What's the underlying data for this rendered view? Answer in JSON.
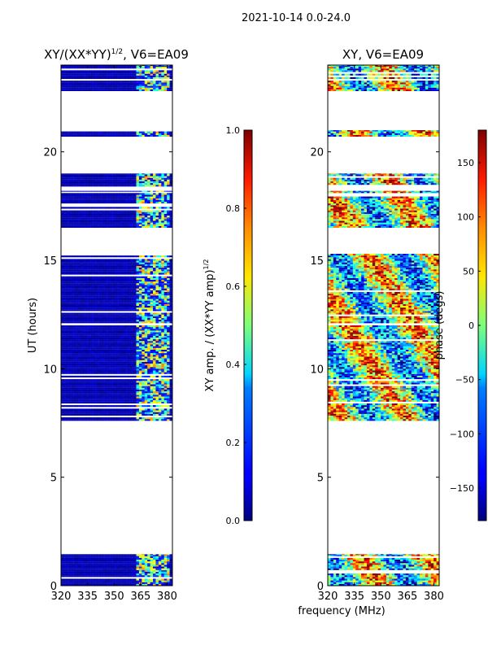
{
  "figure": {
    "suptitle": "2021-10-14 0.0-24.0"
  },
  "chart_data": [
    {
      "type": "heatmap",
      "id": "left",
      "title_main": "XY/(XX*YY)",
      "title_sup": "1/2",
      "title_tail": ", V6=EA09",
      "ylabel": "UT (hours)",
      "xlabel": "",
      "xlim": [
        320,
        383
      ],
      "ylim": [
        0,
        24
      ],
      "xticks": [
        "320",
        "335",
        "350",
        "365",
        "380"
      ],
      "xtick_values": [
        320,
        335,
        350,
        365,
        380
      ],
      "yticks": [
        "0",
        "5",
        "10",
        "15",
        "20"
      ],
      "ytick_values": [
        0,
        5,
        10,
        15,
        20
      ],
      "data_intervals_hours": [
        [
          0,
          1.45
        ],
        [
          7.6,
          12.0
        ],
        [
          12.1,
          15.3
        ],
        [
          16.5,
          18.2
        ],
        [
          18.4,
          19.0
        ],
        [
          20.7,
          21.0
        ],
        [
          22.8,
          24.0
        ]
      ],
      "bright_channel_band_mhz": [
        362,
        381
      ],
      "colorbar": {
        "label_main": "XY amp. / (XX*YY amp)",
        "label_sup": "1/2",
        "ticks": [
          "0.0",
          "0.2",
          "0.4",
          "0.6",
          "0.8",
          "1.0"
        ],
        "tick_values": [
          0,
          0.2,
          0.4,
          0.6,
          0.8,
          1.0
        ],
        "range": [
          0,
          1
        ]
      }
    },
    {
      "type": "heatmap",
      "id": "right",
      "title_main": "XY, V6=EA09",
      "ylabel": "",
      "xlabel": "frequency (MHz)",
      "xlim": [
        320,
        383
      ],
      "ylim": [
        0,
        24
      ],
      "xticks": [
        "320",
        "335",
        "350",
        "365",
        "380"
      ],
      "xtick_values": [
        320,
        335,
        350,
        365,
        380
      ],
      "yticks": [
        "0",
        "5",
        "10",
        "15",
        "20"
      ],
      "ytick_values": [
        0,
        5,
        10,
        15,
        20
      ],
      "data_intervals_hours": [
        [
          0,
          1.45
        ],
        [
          7.6,
          12.0
        ],
        [
          12.1,
          15.3
        ],
        [
          16.5,
          18.2
        ],
        [
          18.4,
          19.0
        ],
        [
          20.7,
          21.0
        ],
        [
          22.8,
          24.0
        ]
      ],
      "colorbar": {
        "label_main": "phase (degs)",
        "ticks": [
          "150",
          "100",
          "50",
          "0",
          "−50",
          "−100",
          "−150"
        ],
        "tick_values": [
          150,
          100,
          50,
          0,
          -50,
          -100,
          -150
        ],
        "range": [
          -180,
          180
        ]
      }
    }
  ],
  "colors": {
    "jet_low": "#00007f",
    "jet_high": "#7f0000"
  }
}
